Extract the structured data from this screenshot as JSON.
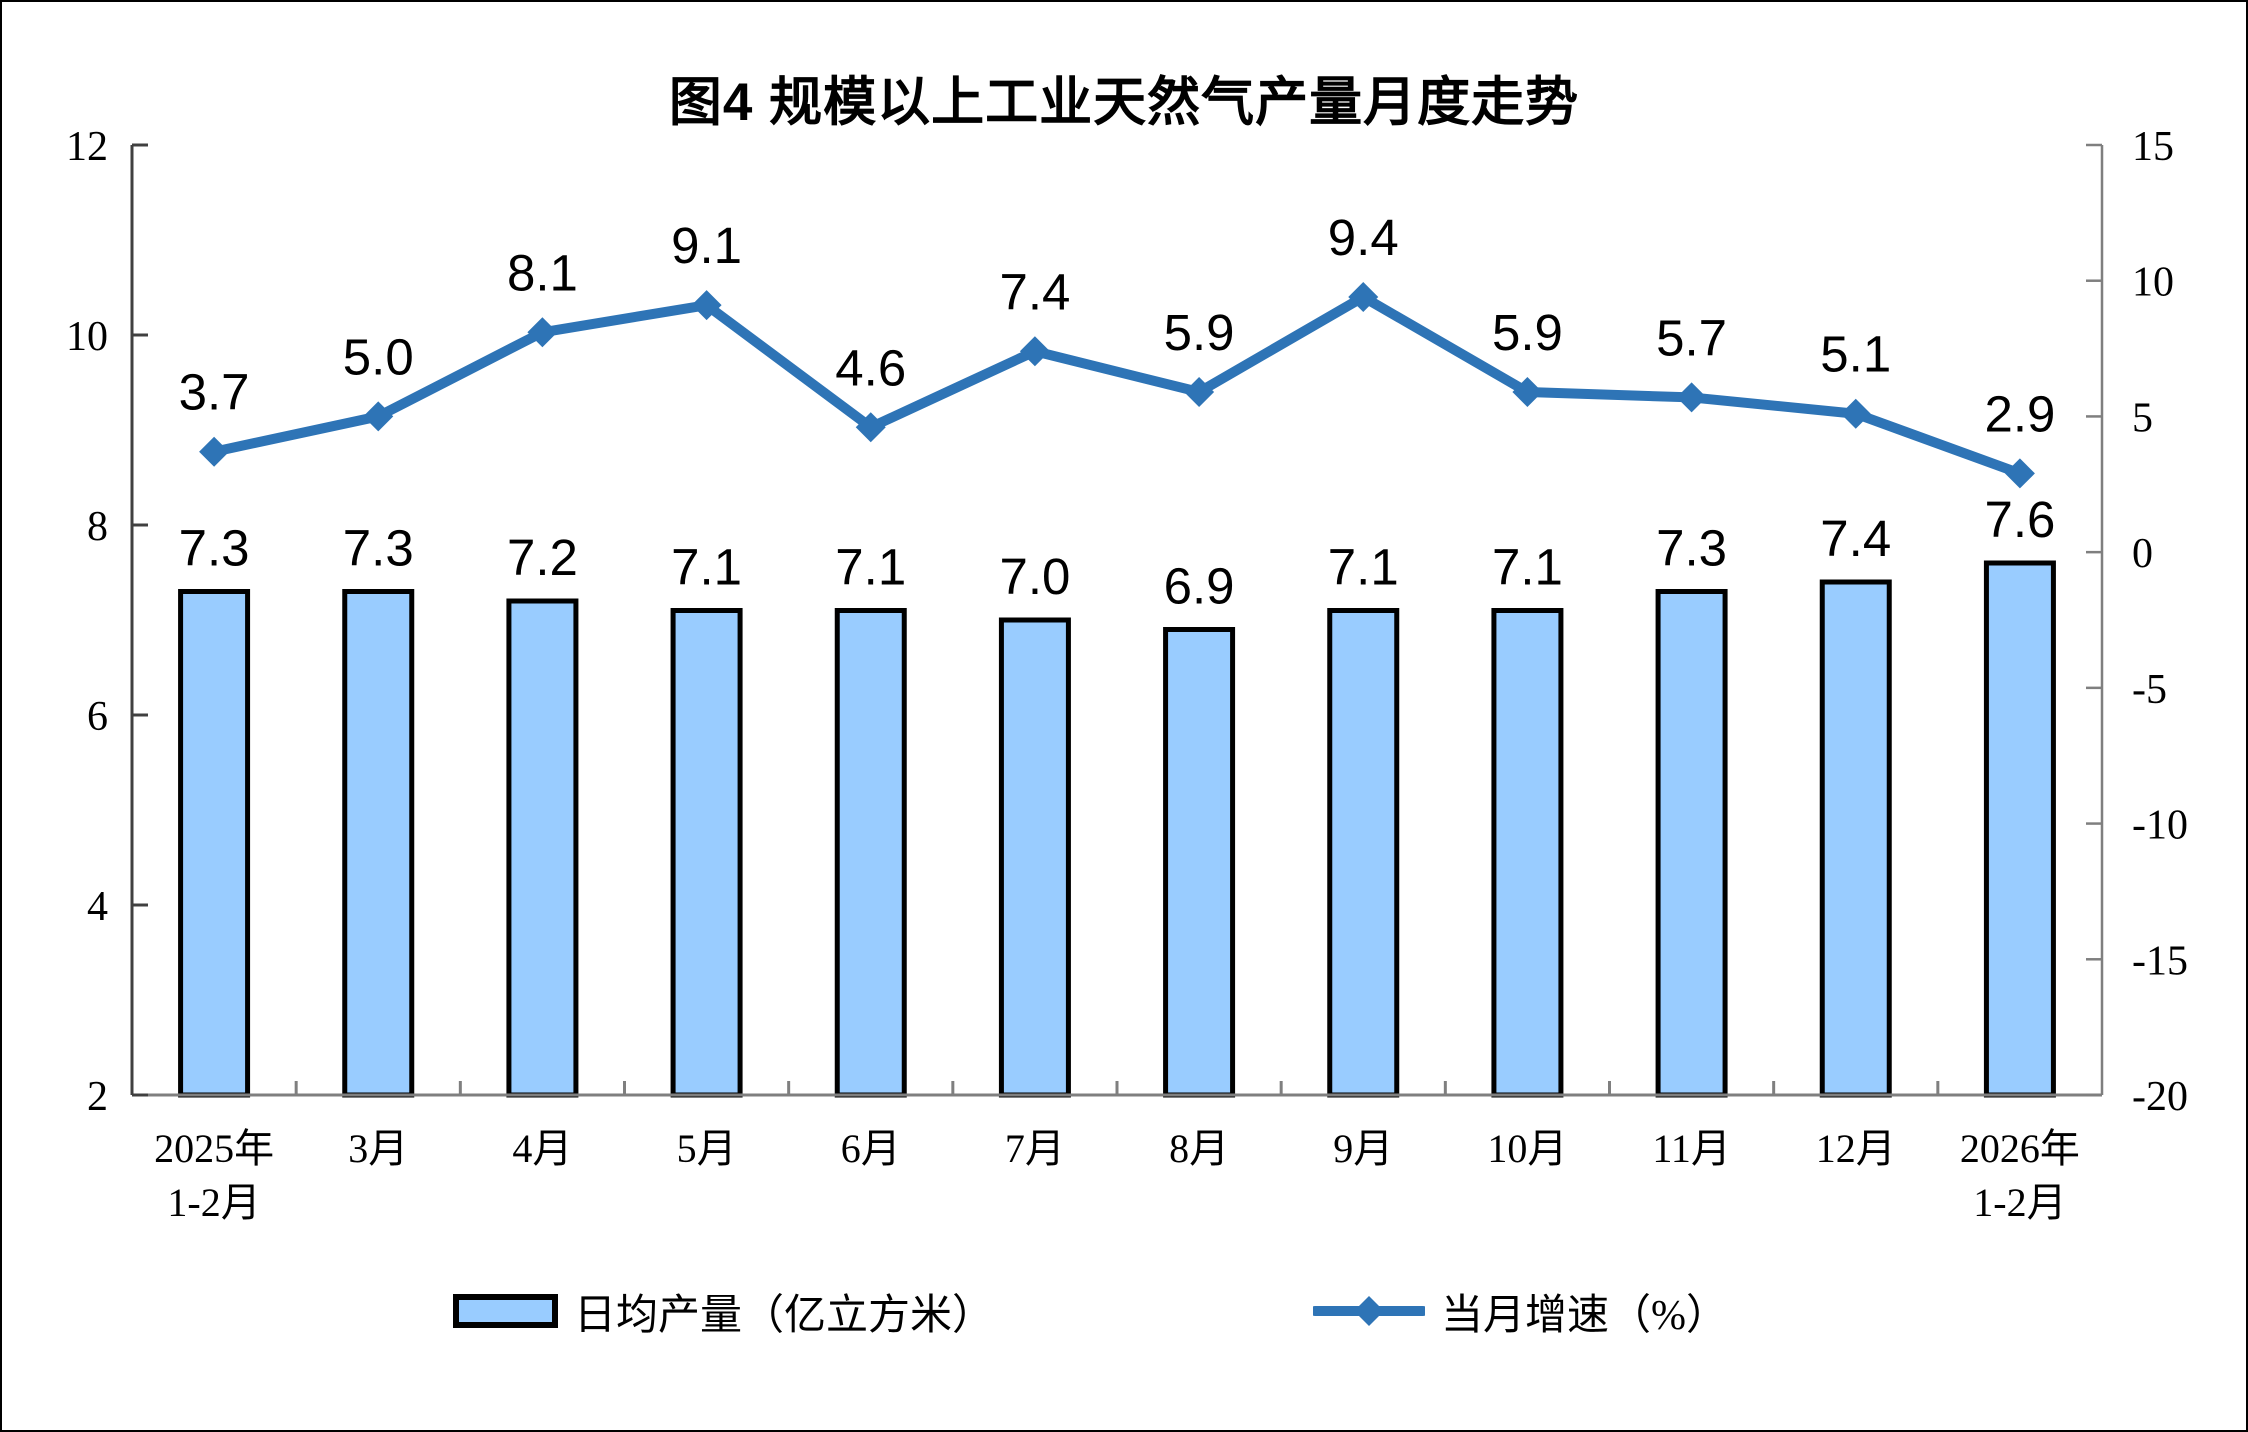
{
  "chart_data": {
    "type": "bar+line",
    "title": "图4 规模以上工业天然气产量月度走势",
    "categories": [
      "2025年\n1-2月",
      "3月",
      "4月",
      "5月",
      "6月",
      "7月",
      "8月",
      "9月",
      "10月",
      "11月",
      "12月",
      "2026年\n1-2月"
    ],
    "series": [
      {
        "name": "日均产量（亿立方米）",
        "type": "bar",
        "axis": "left",
        "values": [
          7.3,
          7.3,
          7.2,
          7.1,
          7.1,
          7.0,
          6.9,
          7.1,
          7.1,
          7.3,
          7.4,
          7.6
        ],
        "color": "#99CCFF",
        "border_color": "#000000"
      },
      {
        "name": "当月增速（%）",
        "type": "line",
        "axis": "right",
        "values": [
          3.7,
          5.0,
          8.1,
          9.1,
          4.6,
          7.4,
          5.9,
          9.4,
          5.9,
          5.7,
          5.1,
          2.9
        ],
        "color": "#2E74B6",
        "marker": "diamond"
      }
    ],
    "left_axis": {
      "min": 2,
      "max": 12,
      "ticks": [
        2,
        4,
        6,
        8,
        10,
        12
      ]
    },
    "right_axis": {
      "min": -20,
      "max": 15,
      "ticks": [
        -20,
        -15,
        -10,
        -5,
        0,
        5,
        10,
        15
      ]
    },
    "grid": false,
    "legend_position": "bottom",
    "data_labels": true
  }
}
